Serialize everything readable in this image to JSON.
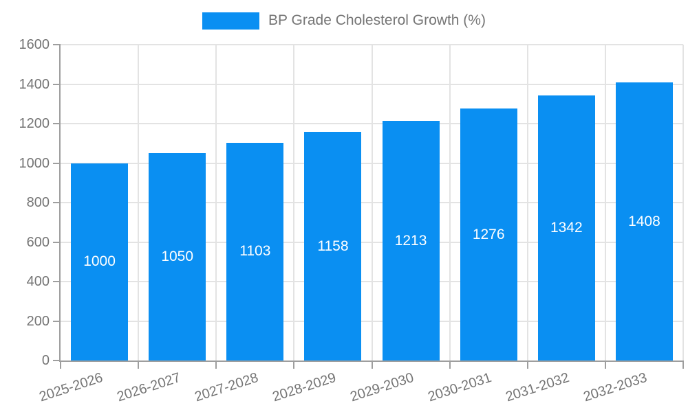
{
  "chart_data": {
    "type": "bar",
    "title": "BP Grade Cholesterol Growth (%)",
    "categories": [
      "2025-2026",
      "2026-2027",
      "2027-2028",
      "2028-2029",
      "2029-2030",
      "2030-2031",
      "2031-2032",
      "2032-2033"
    ],
    "series": [
      {
        "name": "BP Grade Cholesterol Growth (%)",
        "values": [
          1000,
          1050,
          1103,
          1158,
          1213,
          1276,
          1342,
          1408
        ]
      }
    ],
    "xlabel": "",
    "ylabel": "",
    "ylim": [
      0,
      1600
    ],
    "ytick_step": 200,
    "ytick_labels": [
      "0",
      "200",
      "400",
      "600",
      "800",
      "1000",
      "1200",
      "1400",
      "1600"
    ],
    "grid": "on",
    "legend_position": "top-center",
    "bar_value_labels_shown": true,
    "colors": {
      "bar": "#0a8ff2",
      "bar_value_label": "#ffffff",
      "axis_text": "#757575",
      "axis_line": "#9e9e9e",
      "gridline": "#e3e3e3",
      "background": "#ffffff"
    }
  }
}
